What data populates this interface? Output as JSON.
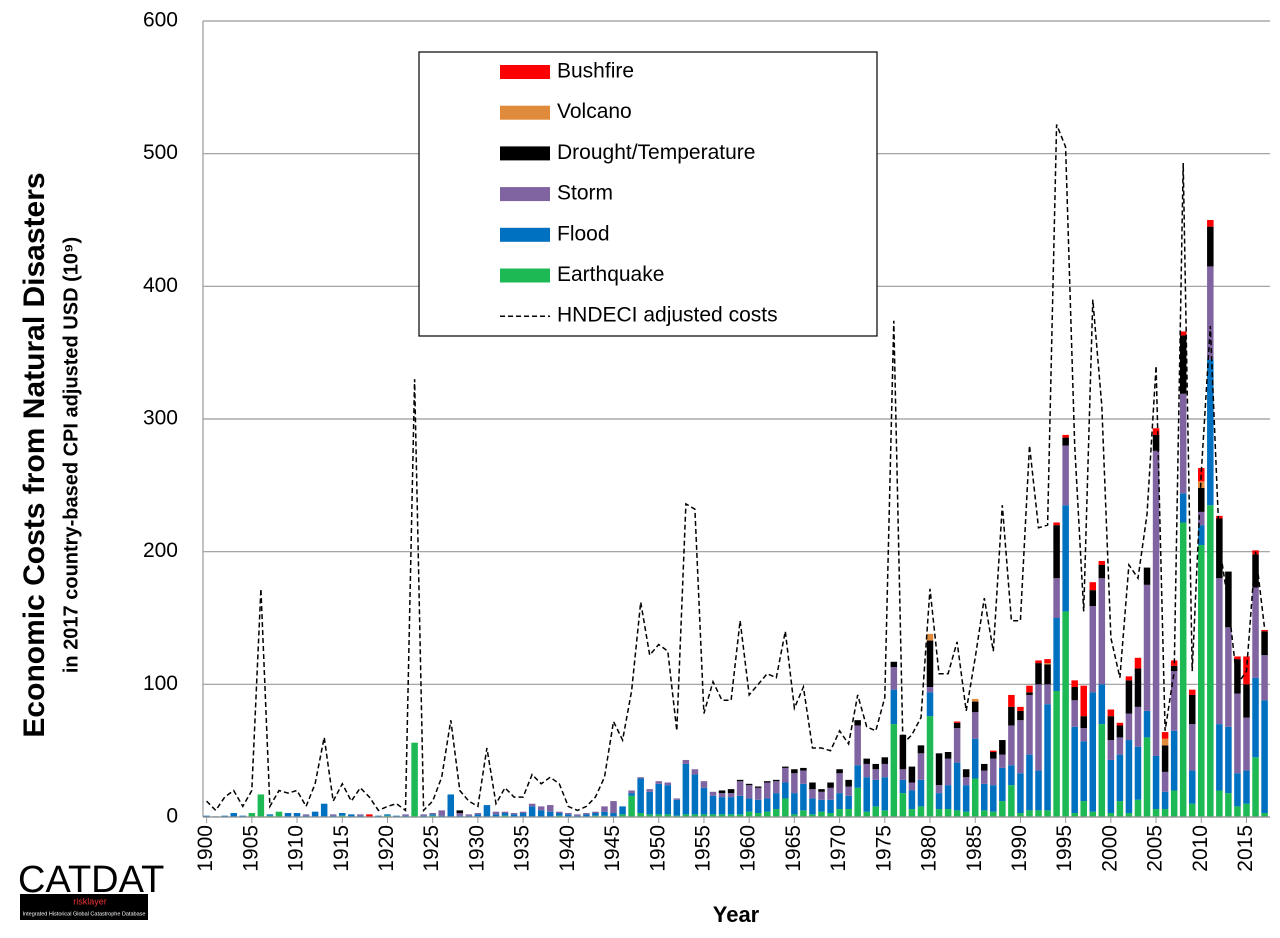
{
  "chart_data": {
    "type": "bar",
    "stacked": true,
    "x_label": "Year",
    "y_title": "Economic Costs from Natural Disasters",
    "y_subtitle": "in 2017 country-based CPI adjusted USD (10⁹)",
    "x": [
      1900,
      1901,
      1902,
      1903,
      1904,
      1905,
      1906,
      1907,
      1908,
      1909,
      1910,
      1911,
      1912,
      1913,
      1914,
      1915,
      1916,
      1917,
      1918,
      1919,
      1920,
      1921,
      1922,
      1923,
      1924,
      1925,
      1926,
      1927,
      1928,
      1929,
      1930,
      1931,
      1932,
      1933,
      1934,
      1935,
      1936,
      1937,
      1938,
      1939,
      1940,
      1941,
      1942,
      1943,
      1944,
      1945,
      1946,
      1947,
      1948,
      1949,
      1950,
      1951,
      1952,
      1953,
      1954,
      1955,
      1956,
      1957,
      1958,
      1959,
      1960,
      1961,
      1962,
      1963,
      1964,
      1965,
      1966,
      1967,
      1968,
      1969,
      1970,
      1971,
      1972,
      1973,
      1974,
      1975,
      1976,
      1977,
      1978,
      1979,
      1980,
      1981,
      1982,
      1983,
      1984,
      1985,
      1986,
      1987,
      1988,
      1989,
      1990,
      1991,
      1992,
      1993,
      1994,
      1995,
      1996,
      1997,
      1998,
      1999,
      2000,
      2001,
      2002,
      2003,
      2004,
      2005,
      2006,
      2007,
      2008,
      2009,
      2010,
      2011,
      2012,
      2013,
      2014,
      2015,
      2016,
      2017
    ],
    "xlim": [
      1899.6,
      2017.6
    ],
    "xticks": [
      1900,
      1905,
      1910,
      1915,
      1920,
      1925,
      1930,
      1935,
      1940,
      1945,
      1950,
      1955,
      1960,
      1965,
      1970,
      1975,
      1980,
      1985,
      1990,
      1995,
      2000,
      2005,
      2010,
      2015
    ],
    "ylim": [
      0,
      600
    ],
    "yticks": [
      0,
      100,
      200,
      300,
      400,
      500,
      600
    ],
    "grid": true,
    "legend": "top-center",
    "series": [
      {
        "name": "Earthquake",
        "color": "#1db954",
        "values": [
          0,
          0,
          0,
          0,
          0,
          3,
          17,
          1,
          4,
          0,
          0,
          0,
          0,
          0,
          0,
          1,
          0,
          0,
          0,
          0,
          1,
          0,
          0,
          56,
          0,
          1,
          0,
          0,
          0,
          0,
          0,
          0,
          0,
          1,
          0,
          0,
          0,
          0,
          0,
          1,
          0,
          0,
          0,
          1,
          1,
          0,
          2,
          16,
          3,
          2,
          2,
          2,
          1,
          2,
          2,
          2,
          2,
          2,
          2,
          2,
          4,
          3,
          4,
          6,
          14,
          2,
          5,
          2,
          4,
          3,
          6,
          6,
          22,
          4,
          8,
          5,
          70,
          18,
          6,
          8,
          76,
          6,
          6,
          5,
          4,
          29,
          5,
          4,
          12,
          24,
          3,
          5,
          5,
          5,
          95,
          155,
          3,
          12,
          4,
          70,
          3,
          12,
          3,
          13,
          60,
          6,
          6,
          20,
          222,
          10,
          205,
          235,
          20,
          18,
          8,
          10,
          45,
          3
        ]
      },
      {
        "name": "Flood",
        "color": "#0070c0",
        "values": [
          1,
          0.5,
          1,
          3,
          1,
          0,
          0,
          1,
          0,
          3,
          3,
          1,
          4,
          10,
          1,
          2,
          2,
          1,
          0,
          1,
          1,
          1,
          1,
          0,
          1,
          1,
          1,
          17,
          1,
          1,
          2,
          9,
          2,
          2,
          2,
          3,
          8,
          5,
          4,
          2,
          2,
          1,
          2,
          2,
          3,
          3,
          6,
          2,
          26,
          17,
          23,
          22,
          12,
          38,
          30,
          20,
          14,
          13,
          13,
          14,
          10,
          10,
          10,
          12,
          12,
          16,
          20,
          12,
          9,
          10,
          12,
          10,
          17,
          26,
          20,
          25,
          26,
          10,
          14,
          20,
          18,
          12,
          18,
          36,
          20,
          30,
          20,
          20,
          25,
          15,
          30,
          42,
          30,
          80,
          55,
          80,
          65,
          45,
          90,
          30,
          40,
          35,
          55,
          40,
          20,
          40,
          13,
          45,
          22,
          25,
          15,
          110,
          50,
          50,
          25,
          25,
          60,
          85
        ]
      },
      {
        "name": "Storm",
        "color": "#8064a2",
        "values": [
          0,
          0,
          0,
          0,
          0,
          0,
          0,
          0,
          0,
          0,
          0,
          1,
          0,
          0,
          1,
          0,
          0,
          1,
          0,
          0,
          0,
          0,
          1,
          0,
          1,
          1,
          4,
          0,
          2,
          1,
          1,
          0,
          2,
          1,
          1,
          1,
          2,
          3,
          5,
          1,
          1,
          1,
          1,
          1,
          4,
          9,
          0,
          2,
          1,
          2,
          2,
          2,
          1,
          3,
          4,
          5,
          3,
          3,
          3,
          11,
          10,
          9,
          12,
          9,
          11,
          15,
          10,
          7,
          6,
          9,
          15,
          7,
          30,
          10,
          8,
          10,
          17,
          8,
          6,
          20,
          4,
          6,
          20,
          26,
          6,
          20,
          10,
          20,
          10,
          30,
          40,
          45,
          65,
          15,
          30,
          45,
          20,
          10,
          65,
          80,
          15,
          13,
          20,
          30,
          95,
          230,
          15,
          45,
          75,
          35,
          10,
          70,
          110,
          75,
          60,
          40,
          68,
          34
        ]
      },
      {
        "name": "Drought/Temperature",
        "color": "#000000",
        "values": [
          0,
          0,
          0,
          0,
          0,
          0,
          0,
          0,
          0,
          0,
          0,
          0,
          0,
          0,
          0,
          0,
          0,
          0,
          0,
          0,
          0,
          0,
          0,
          0,
          0,
          0,
          0,
          0,
          2,
          0,
          0,
          0,
          0,
          0,
          0,
          0,
          0,
          0,
          0,
          0,
          0,
          0,
          0,
          0,
          0,
          0,
          0,
          0,
          0,
          0,
          0,
          0,
          0,
          0,
          0,
          0,
          0,
          2,
          3,
          1,
          1,
          1,
          1,
          1,
          1,
          3,
          2,
          5,
          2,
          4,
          3,
          5,
          4,
          4,
          4,
          5,
          4,
          26,
          12,
          6,
          35,
          24,
          5,
          4,
          6,
          8,
          5,
          5,
          11,
          14,
          7,
          2,
          16,
          15,
          40,
          6,
          10,
          9,
          12,
          10,
          18,
          9,
          25,
          29,
          13,
          12,
          20,
          4,
          44,
          22,
          18,
          30,
          45,
          42,
          26,
          25,
          25,
          18
        ]
      },
      {
        "name": "Volcano",
        "color": "#e08a3c",
        "values": [
          0,
          0,
          0,
          0,
          0,
          0,
          0,
          0,
          0,
          0,
          0,
          0,
          0,
          0,
          0,
          0,
          0,
          0,
          0,
          0,
          0,
          0,
          0,
          0,
          0,
          0,
          0,
          0,
          0,
          0,
          0,
          0,
          0,
          0,
          0,
          0,
          0,
          0,
          0,
          0,
          0,
          0,
          0,
          0,
          0,
          0,
          0,
          0,
          0,
          0,
          0,
          0,
          0,
          0,
          0,
          0,
          0,
          0,
          0,
          0,
          0,
          0,
          0,
          0,
          0,
          0,
          0,
          0,
          0,
          0,
          0,
          0,
          0,
          0,
          0,
          0,
          0,
          0,
          0,
          0,
          5,
          0,
          0,
          0,
          0,
          2,
          0,
          0,
          0,
          0,
          0,
          0,
          0,
          1,
          0,
          0,
          0,
          0,
          0,
          0,
          0,
          0,
          0,
          0,
          0,
          0,
          5,
          0,
          0,
          0,
          5,
          0,
          0,
          0,
          0,
          0,
          0,
          0
        ]
      },
      {
        "name": "Bushfire",
        "color": "#ff0000",
        "values": [
          0,
          0,
          0,
          0,
          0,
          0,
          0,
          0,
          0,
          0,
          0,
          0,
          0,
          0,
          0,
          0,
          0,
          0,
          2,
          0,
          0,
          0,
          0,
          0,
          0,
          0,
          0,
          0,
          0,
          0,
          0,
          0,
          0,
          0,
          0,
          0,
          0,
          0,
          0,
          0,
          0,
          0,
          0,
          0,
          0,
          0,
          0,
          0,
          0,
          0,
          0,
          0,
          0,
          0,
          0,
          0,
          0,
          0,
          0,
          0,
          0,
          0,
          0,
          0,
          0,
          0,
          0,
          0,
          0,
          0,
          0,
          0,
          0,
          0,
          0,
          0,
          0,
          0,
          0,
          0,
          0,
          0,
          0,
          1,
          0,
          0,
          0,
          1,
          0,
          9,
          3,
          5,
          2,
          3,
          2,
          2,
          5,
          23,
          6,
          3,
          5,
          2,
          3,
          8,
          0,
          5,
          5,
          4,
          3,
          4,
          10,
          5,
          2,
          0,
          2,
          21,
          3,
          1
        ]
      }
    ],
    "line": {
      "name": "HNDECI adjusted costs",
      "color": "#000000",
      "dashed": true,
      "values": [
        12,
        5,
        15,
        20,
        8,
        20,
        172,
        8,
        20,
        18,
        20,
        8,
        25,
        60,
        12,
        25,
        12,
        22,
        15,
        5,
        8,
        10,
        5,
        330,
        5,
        12,
        30,
        73,
        20,
        12,
        8,
        52,
        10,
        22,
        15,
        15,
        32,
        25,
        30,
        25,
        8,
        5,
        8,
        15,
        30,
        72,
        58,
        95,
        162,
        122,
        130,
        125,
        65,
        236,
        232,
        78,
        102,
        88,
        88,
        148,
        92,
        100,
        108,
        105,
        140,
        82,
        98,
        52,
        52,
        50,
        65,
        55,
        92,
        68,
        65,
        90,
        374,
        55,
        62,
        75,
        172,
        108,
        108,
        132,
        80,
        120,
        165,
        125,
        235,
        148,
        148,
        280,
        218,
        220,
        522,
        505,
        280,
        155,
        390,
        310,
        135,
        105,
        190,
        180,
        228,
        340,
        65,
        110,
        493,
        110,
        260,
        370,
        205,
        160,
        100,
        110,
        200,
        142
      ]
    }
  },
  "logo": {
    "name": "CATDAT",
    "brand": "risklayer",
    "caption": "Integrated Historical Global Catastrophe Database"
  }
}
